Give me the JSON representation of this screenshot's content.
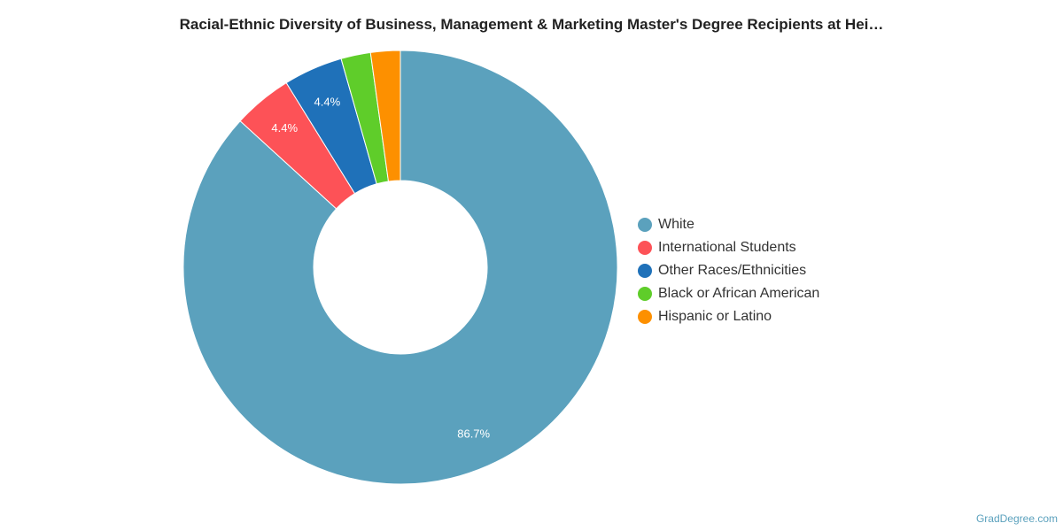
{
  "chart_data": {
    "type": "pie",
    "variant": "donut",
    "title": "Racial-Ethnic Diversity of Business, Management & Marketing Master's Degree Recipients at Hei…",
    "categories": [
      "White",
      "International Students",
      "Other Races/Ethnicities",
      "Black or African American",
      "Hispanic or Latino"
    ],
    "values": [
      86.7,
      4.4,
      4.4,
      2.2,
      2.2
    ],
    "colors": [
      "#5ba1bd",
      "#fd5257",
      "#1f71b9",
      "#5fcd2a",
      "#fd9000"
    ],
    "data_labels": [
      "86.7%",
      "4.4%",
      "4.4%",
      "",
      ""
    ],
    "legend_position": "right"
  },
  "credit": "GradDegree.com"
}
